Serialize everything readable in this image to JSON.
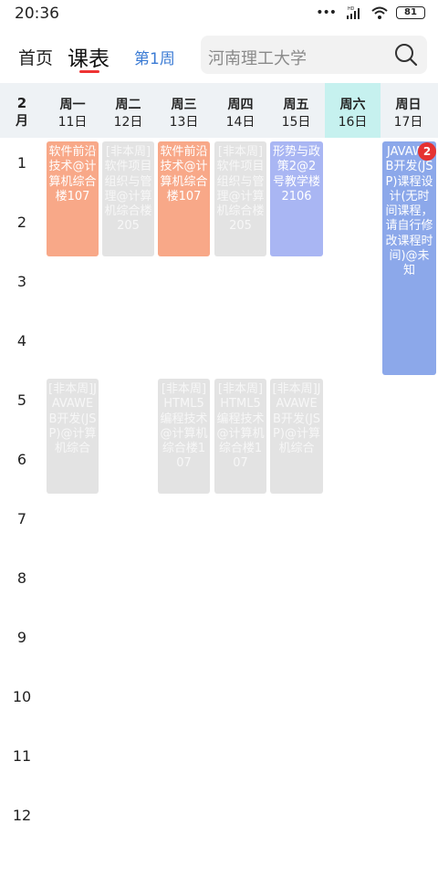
{
  "status_bar": {
    "time": "20:36",
    "dots": "•••",
    "battery": "81",
    "network_label": "HD"
  },
  "header": {
    "home_tab": "首页",
    "schedule_tab": "课表",
    "week_selector": "第1周",
    "search_placeholder": "河南理工大学"
  },
  "week": {
    "month_number": "2",
    "month_unit": "月",
    "days": [
      {
        "name": "周一",
        "date": "11日"
      },
      {
        "name": "周二",
        "date": "12日"
      },
      {
        "name": "周三",
        "date": "13日"
      },
      {
        "name": "周四",
        "date": "14日"
      },
      {
        "name": "周五",
        "date": "15日"
      },
      {
        "name": "周六",
        "date": "16日",
        "today": true
      },
      {
        "name": "周日",
        "date": "17日"
      }
    ]
  },
  "periods": [
    "1",
    "2",
    "3",
    "4",
    "5",
    "6",
    "7",
    "8",
    "9",
    "10",
    "11",
    "12"
  ],
  "courses": [
    {
      "text": "软件前沿技术@计算机综合楼107",
      "color": "#f8a888"
    },
    {
      "text": "[非本周]软件项目组织与管理@计算机综合楼205",
      "color": "#e3e3e3"
    },
    {
      "text": "软件前沿技术@计算机综合楼107",
      "color": "#f8a888"
    },
    {
      "text": "[非本周]软件项目组织与管理@计算机综合楼205",
      "color": "#e3e3e3"
    },
    {
      "text": "形势与政策2@2号教学楼2106",
      "color": "#a9b6f3"
    },
    {
      "text": "JAVAWEB开发(JSP)课程设计(无时间课程，请自行修改课程时间)@未知",
      "color": "#8ca8ea"
    },
    {
      "text": "[非本周]JAVAWEB开发(JSP)@计算机综合",
      "color": "#e3e3e3"
    },
    {
      "text": "[非本周]HTML5编程技术@计算机综合楼107",
      "color": "#e3e3e3"
    },
    {
      "text": "[非本周]HTML5编程技术@计算机综合楼107",
      "color": "#e3e3e3"
    },
    {
      "text": "[非本周]JAVAWEB开发(JSP)@计算机综合",
      "color": "#e3e3e3"
    }
  ],
  "badge_count": "2"
}
